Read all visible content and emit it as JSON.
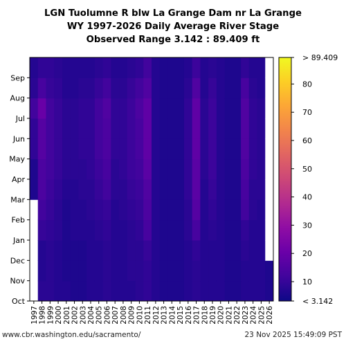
{
  "title_lines": [
    "LGN Tuolumne R blw La Grange Dam nr La Grange",
    "WY 1997-2026 Daily Average River Stage",
    "Observed Range 3.142 : 89.409 ft"
  ],
  "footer": {
    "source": "www.cbr.washington.edu/sacramento/",
    "timestamp": "23 Nov 2025 15:49:09 PST"
  },
  "chart_data": {
    "type": "heatmap",
    "title": "LGN Tuolumne R blw La Grange Dam nr La Grange",
    "subtitle": "WY 1997-2026 Daily Average River Stage",
    "observed_range": [
      3.142,
      89.409
    ],
    "units": "ft",
    "x_categories": [
      "1997",
      "1998",
      "1999",
      "2000",
      "2001",
      "2002",
      "2003",
      "2004",
      "2005",
      "2006",
      "2007",
      "2008",
      "2009",
      "2010",
      "2011",
      "2012",
      "2013",
      "2014",
      "2015",
      "2016",
      "2017",
      "2018",
      "2019",
      "2020",
      "2021",
      "2022",
      "2023",
      "2024",
      "2025",
      "2026"
    ],
    "y_categories": [
      "Oct",
      "Nov",
      "Dec",
      "Jan",
      "Feb",
      "Mar",
      "Apr",
      "May",
      "Jun",
      "Jul",
      "Aug",
      "Sep"
    ],
    "colorbar": {
      "range": [
        3.142,
        89.409
      ],
      "ticks": [
        10,
        20,
        30,
        40,
        50,
        60,
        70,
        80
      ],
      "min_label": "< 3.142",
      "max_label": "> 89.409",
      "colormap": "plasma"
    },
    "missing_cells": [
      {
        "year": "1997",
        "months": [
          "Oct",
          "Nov",
          "Dec",
          "Jan",
          "Feb"
        ]
      },
      {
        "year": "2026",
        "months": [
          "Dec",
          "Jan",
          "Feb",
          "Mar",
          "Apr",
          "May",
          "Jun",
          "Jul",
          "Aug",
          "Sep"
        ]
      }
    ],
    "values": [
      [
        7,
        6,
        5,
        6,
        6,
        6,
        6,
        9,
        9,
        12,
        8,
        7
      ],
      [
        8,
        7,
        7,
        10,
        12,
        14,
        14,
        16,
        16,
        20,
        13,
        9
      ],
      [
        8,
        8,
        8,
        9,
        10,
        11,
        12,
        12,
        12,
        12,
        10,
        9
      ],
      [
        7,
        7,
        7,
        8,
        8,
        9,
        10,
        10,
        10,
        10,
        9,
        8
      ],
      [
        7,
        6,
        6,
        6,
        6,
        7,
        8,
        8,
        8,
        8,
        7,
        7
      ],
      [
        6,
        6,
        6,
        7,
        7,
        7,
        8,
        8,
        8,
        8,
        7,
        7
      ],
      [
        6,
        6,
        6,
        7,
        7,
        8,
        8,
        9,
        9,
        9,
        8,
        7
      ],
      [
        7,
        7,
        7,
        7,
        8,
        8,
        9,
        9,
        9,
        9,
        8,
        7
      ],
      [
        7,
        7,
        7,
        8,
        9,
        10,
        11,
        12,
        12,
        12,
        10,
        8
      ],
      [
        8,
        8,
        8,
        9,
        10,
        12,
        13,
        14,
        14,
        15,
        12,
        9
      ],
      [
        7,
        7,
        7,
        7,
        7,
        8,
        8,
        9,
        9,
        9,
        8,
        7
      ],
      [
        7,
        7,
        7,
        7,
        8,
        8,
        9,
        9,
        9,
        9,
        8,
        7
      ],
      [
        7,
        8,
        8,
        8,
        9,
        10,
        11,
        11,
        11,
        11,
        10,
        8
      ],
      [
        8,
        8,
        8,
        9,
        10,
        11,
        12,
        13,
        13,
        14,
        12,
        9
      ],
      [
        9,
        9,
        10,
        13,
        14,
        15,
        17,
        18,
        18,
        18,
        15,
        12
      ],
      [
        7,
        7,
        7,
        7,
        7,
        7,
        7,
        7,
        7,
        7,
        7,
        7
      ],
      [
        6,
        6,
        6,
        6,
        6,
        6,
        6,
        6,
        6,
        6,
        6,
        6
      ],
      [
        6,
        6,
        6,
        6,
        6,
        6,
        6,
        6,
        6,
        6,
        6,
        6
      ],
      [
        6,
        6,
        6,
        6,
        6,
        6,
        6,
        6,
        6,
        6,
        6,
        6
      ],
      [
        7,
        7,
        7,
        8,
        8,
        9,
        9,
        9,
        9,
        9,
        8,
        7
      ],
      [
        8,
        8,
        9,
        13,
        16,
        17,
        17,
        18,
        18,
        18,
        15,
        11
      ],
      [
        7,
        7,
        7,
        7,
        7,
        7,
        8,
        8,
        8,
        8,
        7,
        7
      ],
      [
        7,
        7,
        7,
        8,
        9,
        10,
        11,
        11,
        11,
        11,
        10,
        8
      ],
      [
        7,
        7,
        7,
        7,
        7,
        7,
        7,
        7,
        7,
        7,
        7,
        7
      ],
      [
        6,
        6,
        6,
        6,
        6,
        6,
        6,
        6,
        6,
        6,
        6,
        6
      ],
      [
        6,
        6,
        6,
        6,
        6,
        6,
        6,
        6,
        6,
        6,
        6,
        6
      ],
      [
        7,
        7,
        8,
        9,
        12,
        13,
        14,
        15,
        15,
        15,
        13,
        9
      ],
      [
        7,
        7,
        7,
        7,
        8,
        8,
        9,
        9,
        9,
        9,
        8,
        7
      ],
      [
        7,
        7,
        7,
        7,
        7,
        8,
        8,
        8,
        8,
        8,
        7,
        7
      ],
      [
        6,
        6,
        6,
        6,
        6,
        6,
        6,
        6,
        6,
        6,
        6,
        6
      ]
    ],
    "xlabel": "",
    "ylabel": ""
  }
}
